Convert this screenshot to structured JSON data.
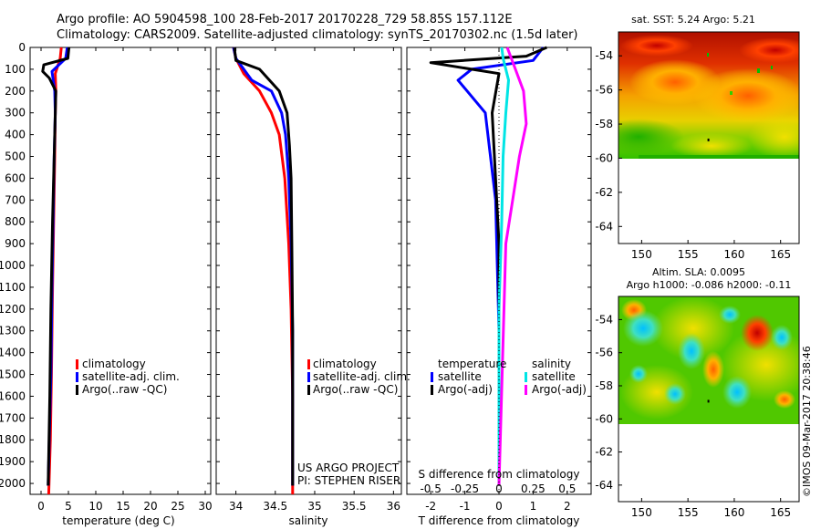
{
  "header": {
    "line1": "Argo profile: AO 5904598_100 28-Feb-2017 20170228_729 58.85S 157.112E",
    "line2": "Climatology: CARS2009. Satellite-adjusted climatology: synTS_20170302.nc (1.5d later)"
  },
  "depth_ticks": [
    "0",
    "100",
    "200",
    "300",
    "400",
    "500",
    "600",
    "700",
    "800",
    "900",
    "1000",
    "1100",
    "1200",
    "1300",
    "1400",
    "1500",
    "1600",
    "1700",
    "1800",
    "1900",
    "2000"
  ],
  "colors": {
    "climatology": "#ff0000",
    "satellite": "#0000ff",
    "argo": "#000000",
    "sal_satellite": "#00e5e5",
    "sal_argo": "#ff00ff"
  },
  "chart_data": [
    {
      "type": "line",
      "name": "temperature",
      "xlabel": "temperature (deg C)",
      "ylabel": "",
      "xlim": [
        -2,
        31
      ],
      "ylim": [
        2050,
        0
      ],
      "xticks": [
        "0",
        "5",
        "10",
        "15",
        "20",
        "25",
        "30"
      ],
      "legend": [
        "climatology",
        "satellite-adj. clim.",
        "Argo(..raw -QC)"
      ],
      "legend_placement": "bottom-center",
      "series": [
        {
          "name": "climatology",
          "color": "#ff0000",
          "x": [
            3.7,
            3.5,
            2.6,
            2.7,
            2.6,
            2.5,
            2.3,
            2.1,
            1.9,
            1.7,
            1.4
          ],
          "y": [
            0,
            50,
            120,
            200,
            300,
            500,
            800,
            1100,
            1500,
            1800,
            2050
          ]
        },
        {
          "name": "satellite-adj. clim.",
          "color": "#0000ff",
          "x": [
            4.8,
            4.5,
            2.0,
            2.5,
            2.6,
            2.4,
            2.2,
            2.0,
            1.8,
            1.5,
            1.3
          ],
          "y": [
            0,
            50,
            110,
            200,
            300,
            500,
            800,
            1100,
            1500,
            1800,
            2010
          ]
        },
        {
          "name": "Argo(..raw -QC)",
          "color": "#000000",
          "x": [
            5.1,
            4.9,
            0.5,
            0.3,
            1.5,
            2.7,
            2.6,
            2.4,
            2.1,
            1.8,
            1.6,
            1.3
          ],
          "y": [
            0,
            50,
            80,
            110,
            140,
            200,
            300,
            500,
            800,
            1200,
            1600,
            2010
          ]
        }
      ]
    },
    {
      "type": "line",
      "name": "salinity",
      "xlabel": "salinity",
      "ylabel": "",
      "xlim": [
        33.75,
        36.1
      ],
      "ylim": [
        2050,
        0
      ],
      "xticks": [
        "34",
        "34.5",
        "35",
        "35.5",
        "36"
      ],
      "legend": [
        "climatology",
        "satellite-adj. clim.",
        "Argo(..raw -QC)"
      ],
      "legend_placement": "bottom-right",
      "annotation": [
        "US ARGO PROJECT",
        "PI: STEPHEN RISER"
      ],
      "series": [
        {
          "name": "climatology",
          "color": "#ff0000",
          "x": [
            33.97,
            34.0,
            34.1,
            34.3,
            34.45,
            34.55,
            34.62,
            34.67,
            34.7,
            34.72,
            34.72
          ],
          "y": [
            0,
            50,
            120,
            200,
            300,
            400,
            600,
            900,
            1200,
            1600,
            2050
          ]
        },
        {
          "name": "satellite-adj. clim.",
          "color": "#0000ff",
          "x": [
            33.97,
            34.0,
            34.2,
            34.45,
            34.58,
            34.63,
            34.67,
            34.7,
            34.72,
            34.72
          ],
          "y": [
            0,
            50,
            150,
            200,
            300,
            400,
            600,
            900,
            1300,
            2010
          ]
        },
        {
          "name": "Argo(..raw -QC)",
          "color": "#000000",
          "x": [
            33.98,
            34.0,
            34.3,
            34.55,
            34.65,
            34.68,
            34.7,
            34.71,
            34.72,
            34.72
          ],
          "y": [
            0,
            60,
            100,
            200,
            300,
            450,
            600,
            900,
            1300,
            2010
          ]
        }
      ]
    },
    {
      "type": "line",
      "name": "difference from climatology",
      "xlabel": "T difference from climatology",
      "xlabel_top": "S difference from climatology",
      "xlim": [
        -2.7,
        2.7
      ],
      "ylim": [
        2050,
        0
      ],
      "xticks": [
        "-2",
        "-1",
        "0",
        "1",
        "2"
      ],
      "xticks_s": [
        "-0.5",
        "-0.25",
        "0",
        "0.25",
        "0.5"
      ],
      "legend_temperature_title": "temperature",
      "legend_salinity_title": "salinity",
      "legend": [
        "satellite",
        "Argo(-adj)",
        "satellite",
        "Argo(-adj)"
      ],
      "legend_placement": "bottom",
      "series": [
        {
          "name": "temperature satellite",
          "color": "#0000ff",
          "x": [
            1.3,
            1.0,
            -0.8,
            -1.2,
            -0.4,
            -0.1,
            0.0,
            0.0
          ],
          "y": [
            0,
            60,
            100,
            150,
            300,
            700,
            1300,
            2010
          ]
        },
        {
          "name": "temperature Argo(-adj)",
          "color": "#000000",
          "x": [
            1.4,
            0.8,
            -2.0,
            0.0,
            -0.2,
            0.0,
            0.0
          ],
          "y": [
            0,
            40,
            70,
            120,
            300,
            900,
            2010
          ]
        },
        {
          "name": "salinity satellite",
          "color": "#00e5e5",
          "x": [
            0.02,
            0.03,
            0.07,
            0.05,
            0.03,
            0.02,
            0.0,
            0.0
          ],
          "y": [
            0,
            50,
            150,
            300,
            500,
            800,
            1200,
            2010
          ]
        },
        {
          "name": "salinity Argo(-adj)",
          "color": "#ff00ff",
          "x": [
            0.06,
            0.12,
            0.18,
            0.2,
            0.15,
            0.1,
            0.05,
            0.0
          ],
          "y": [
            0,
            100,
            200,
            350,
            500,
            700,
            900,
            2010
          ]
        }
      ]
    },
    {
      "type": "heatmap",
      "name": "sat SST map",
      "title": "sat. SST: 5.24  Argo: 5.21",
      "xlim": [
        147.5,
        167
      ],
      "ylim": [
        -65,
        -52.6
      ],
      "xticks": [
        "150",
        "155",
        "160",
        "165"
      ],
      "yticks": [
        "-54",
        "-56",
        "-58",
        "-60",
        "-62",
        "-64"
      ],
      "float_position": {
        "lon": 157.112,
        "lat": -58.85
      }
    },
    {
      "type": "heatmap",
      "name": "altimetry SLA map",
      "title": "Altim. SLA: 0.0095",
      "subtitle": "Argo h1000: -0.086 h2000: -0.11",
      "xlim": [
        147.5,
        167
      ],
      "ylim": [
        -65,
        -52.6
      ],
      "xticks": [
        "150",
        "155",
        "160",
        "165"
      ],
      "yticks": [
        "-54",
        "-56",
        "-58",
        "-60",
        "-62",
        "-64"
      ],
      "float_position": {
        "lon": 157.112,
        "lat": -58.85
      }
    }
  ],
  "footer_credit": "©IMOS 09-Mar-2017 20:38:46"
}
